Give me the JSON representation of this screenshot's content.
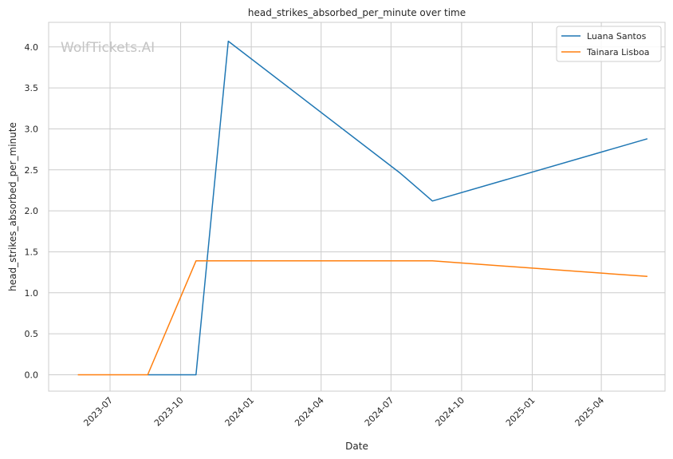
{
  "chart_data": {
    "type": "line",
    "title": "head_strikes_absorbed_per_minute over time",
    "xlabel": "Date",
    "ylabel": "head_strikes_absorbed_per_minute",
    "watermark": "WolfTickets.AI",
    "x_ticks": [
      "2023-07",
      "2023-10",
      "2024-01",
      "2024-04",
      "2024-07",
      "2024-10",
      "2025-01",
      "2025-04"
    ],
    "y_ticks": [
      "0.0",
      "0.5",
      "1.0",
      "1.5",
      "2.0",
      "2.5",
      "3.0",
      "3.5",
      "4.0"
    ],
    "ylim": [
      -0.2,
      4.3
    ],
    "xlim": [
      "2023-04-12",
      "2025-06-23"
    ],
    "grid": true,
    "legend_position": "top-right",
    "series": [
      {
        "name": "Luana Santos",
        "color": "#1f77b4",
        "points": [
          {
            "x": "2023-08-19",
            "y": 0.0
          },
          {
            "x": "2023-10-21",
            "y": 0.0
          },
          {
            "x": "2023-12-02",
            "y": 4.07
          },
          {
            "x": "2024-07-13",
            "y": 2.46
          },
          {
            "x": "2024-08-24",
            "y": 2.12
          },
          {
            "x": "2025-05-31",
            "y": 2.88
          }
        ]
      },
      {
        "name": "Tainara Lisboa",
        "color": "#ff7f0e",
        "points": [
          {
            "x": "2023-05-20",
            "y": 0.0
          },
          {
            "x": "2023-08-19",
            "y": 0.0
          },
          {
            "x": "2023-10-21",
            "y": 1.39
          },
          {
            "x": "2024-08-24",
            "y": 1.39
          },
          {
            "x": "2025-05-31",
            "y": 1.2
          }
        ]
      }
    ]
  }
}
